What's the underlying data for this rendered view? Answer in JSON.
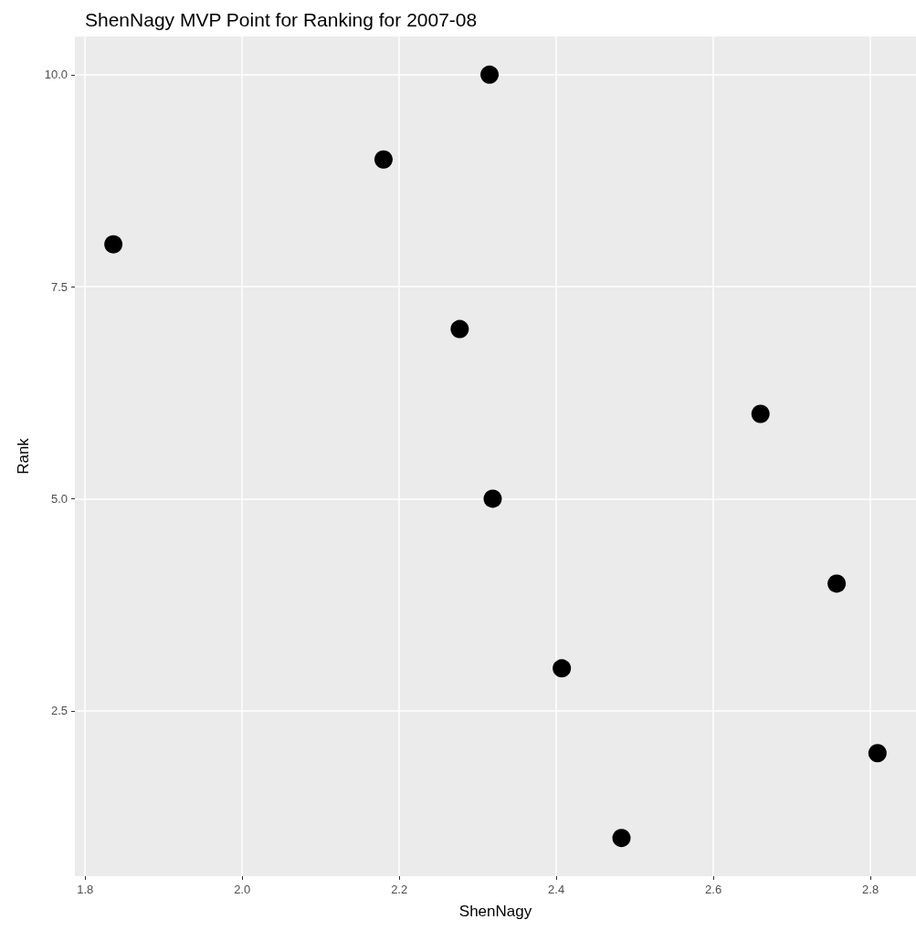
{
  "chart_data": {
    "type": "scatter",
    "title": "ShenNagy MVP Point for Ranking for 2007-08",
    "xlabel": "ShenNagy",
    "ylabel": "Rank",
    "x": [
      1.836,
      2.18,
      2.315,
      2.277,
      2.319,
      2.407,
      2.483,
      2.66,
      2.757,
      2.809
    ],
    "series": [
      {
        "color": "#000000",
        "values": [
          8,
          9,
          10,
          7,
          5,
          3,
          1,
          6,
          4,
          2
        ]
      }
    ],
    "xlim": [
      1.787,
      2.858
    ],
    "xticks": [
      1.8,
      {
        "value": 2,
        "label": "2.0"
      },
      2.2,
      2.4,
      2.6,
      2.8
    ],
    "ylim": [
      0.55,
      10.45
    ],
    "yticks": [
      2.5,
      {
        "value": 5,
        "label": "5.0"
      },
      7.5,
      {
        "value": 10,
        "label": "10.0"
      }
    ],
    "grid": true,
    "marker": "circle"
  }
}
